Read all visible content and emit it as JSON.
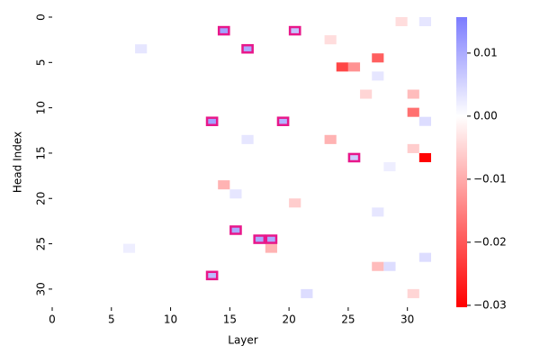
{
  "chart_data": {
    "type": "heatmap",
    "x_label": "Layer",
    "y_label": "Head Index",
    "xlim": [
      0,
      32
    ],
    "ylim": [
      0,
      32
    ],
    "xticks": [
      0,
      5,
      10,
      15,
      20,
      25,
      30
    ],
    "yticks": [
      0,
      5,
      10,
      15,
      20,
      25,
      30
    ],
    "colormap": "bwr",
    "clim": [
      -0.0303,
      0.0157
    ],
    "colorbar_ticks": [
      0.01,
      0.0,
      -0.01,
      -0.02,
      -0.03
    ],
    "colorbar_tick_labels": [
      "0.01",
      "0.00",
      "−0.01",
      "−0.02",
      "−0.03"
    ],
    "cells": [
      {
        "row": 1,
        "col": 14,
        "value": 0.011
      },
      {
        "row": 1,
        "col": 20,
        "value": 0.007
      },
      {
        "row": 3,
        "col": 16,
        "value": 0.01
      },
      {
        "row": 11,
        "col": 13,
        "value": 0.011
      },
      {
        "row": 11,
        "col": 19,
        "value": 0.009
      },
      {
        "row": 15,
        "col": 25,
        "value": 0.006
      },
      {
        "row": 23,
        "col": 15,
        "value": 0.01
      },
      {
        "row": 24,
        "col": 17,
        "value": 0.01
      },
      {
        "row": 24,
        "col": 18,
        "value": 0.01
      },
      {
        "row": 28,
        "col": 13,
        "value": 0.008
      },
      {
        "row": 15,
        "col": 31,
        "value": -0.03
      },
      {
        "row": 5,
        "col": 24,
        "value": -0.022
      },
      {
        "row": 5,
        "col": 25,
        "value": -0.013
      },
      {
        "row": 4,
        "col": 27,
        "value": -0.019
      },
      {
        "row": 10,
        "col": 30,
        "value": -0.017
      },
      {
        "row": 8,
        "col": 30,
        "value": -0.008
      },
      {
        "row": 13,
        "col": 23,
        "value": -0.009
      },
      {
        "row": 18,
        "col": 14,
        "value": -0.009
      },
      {
        "row": 25,
        "col": 18,
        "value": -0.009
      },
      {
        "row": 27,
        "col": 27,
        "value": -0.008
      },
      {
        "row": 14,
        "col": 30,
        "value": -0.006
      },
      {
        "row": 20,
        "col": 20,
        "value": -0.006
      },
      {
        "row": 2,
        "col": 23,
        "value": -0.004
      },
      {
        "row": 0,
        "col": 29,
        "value": -0.004
      },
      {
        "row": 30,
        "col": 30,
        "value": -0.005
      },
      {
        "row": 8,
        "col": 26,
        "value": -0.005
      },
      {
        "row": 6,
        "col": 27,
        "value": 0.003
      },
      {
        "row": 3,
        "col": 7,
        "value": 0.003
      },
      {
        "row": 21,
        "col": 27,
        "value": 0.003
      },
      {
        "row": 27,
        "col": 28,
        "value": 0.004
      },
      {
        "row": 30,
        "col": 21,
        "value": 0.004
      },
      {
        "row": 11,
        "col": 31,
        "value": 0.004
      },
      {
        "row": 26,
        "col": 31,
        "value": 0.004
      },
      {
        "row": 13,
        "col": 16,
        "value": 0.003
      },
      {
        "row": 19,
        "col": 15,
        "value": 0.003
      },
      {
        "row": 0,
        "col": 31,
        "value": 0.003
      },
      {
        "row": 16,
        "col": 28,
        "value": 0.002
      },
      {
        "row": 25,
        "col": 6,
        "value": 0.002
      }
    ],
    "highlighted": [
      [
        1,
        14
      ],
      [
        1,
        20
      ],
      [
        3,
        16
      ],
      [
        11,
        13
      ],
      [
        11,
        19
      ],
      [
        15,
        25
      ],
      [
        23,
        15
      ],
      [
        24,
        17
      ],
      [
        24,
        18
      ],
      [
        28,
        13
      ]
    ],
    "highlight_color": "#e8178a"
  }
}
